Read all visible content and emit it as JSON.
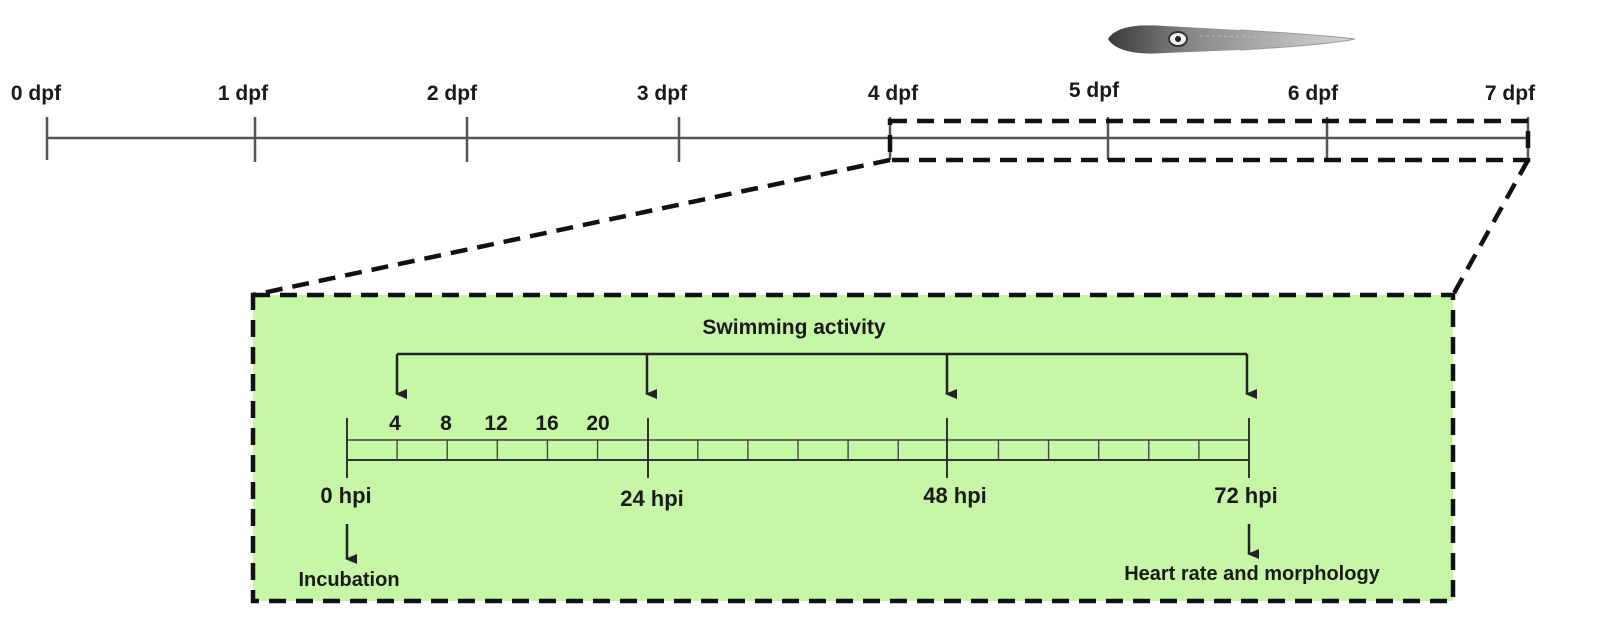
{
  "timeline_dpf": {
    "labels": [
      "0 dpf",
      "1 dpf",
      "2 dpf",
      "3 dpf",
      "4 dpf",
      "5 dpf",
      "6 dpf",
      "7 dpf"
    ]
  },
  "inset": {
    "heading": "Swimming activity",
    "hour_labels": [
      "4",
      "8",
      "12",
      "16",
      "20"
    ],
    "major_labels": [
      "0 hpi",
      "24 hpi",
      "48 hpi",
      "72 hpi"
    ],
    "start_note": "Incubation",
    "end_note": "Heart rate and morphology",
    "background": "#c6f7a7"
  }
}
